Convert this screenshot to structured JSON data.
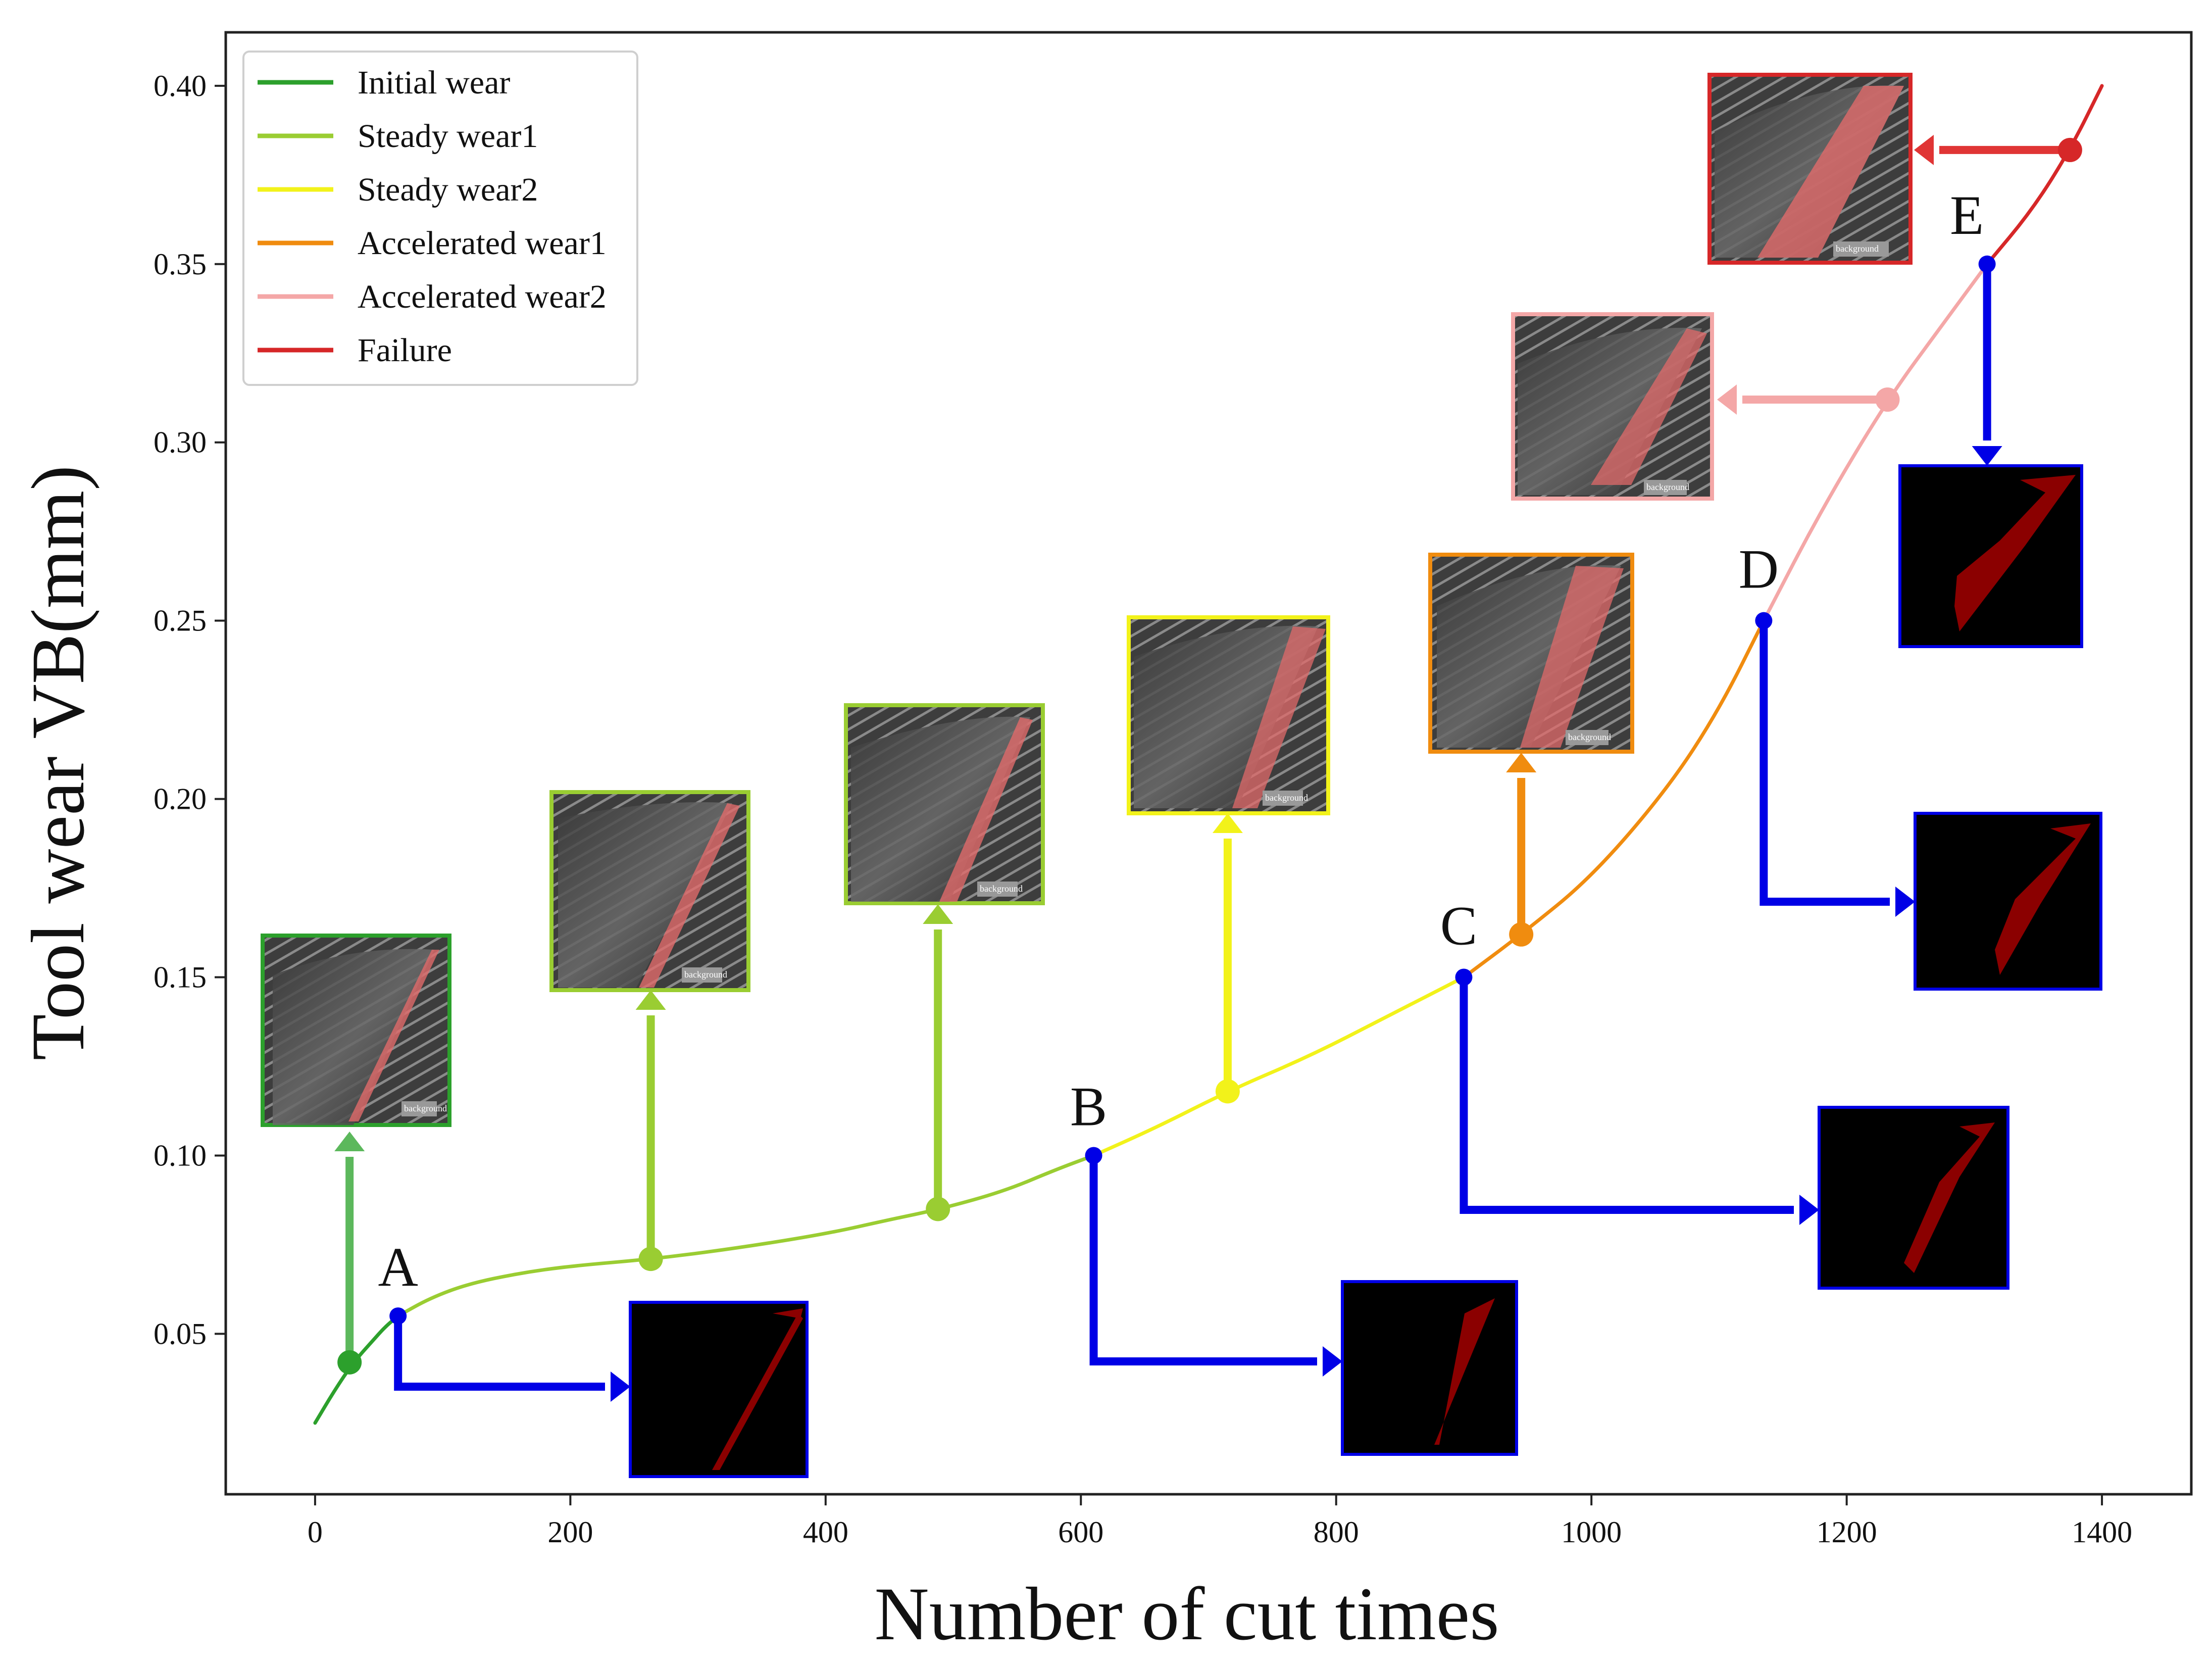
{
  "chart_data": {
    "type": "line",
    "title": "",
    "xlabel": "Number of cut times",
    "ylabel": "Tool  wear VB(mm)",
    "xlim": [
      -70,
      1470
    ],
    "ylim": [
      0.005,
      0.415
    ],
    "xticks": [
      0,
      200,
      400,
      600,
      800,
      1000,
      1200,
      1400
    ],
    "yticks": [
      0.05,
      0.1,
      0.15,
      0.2,
      0.25,
      0.3,
      0.35,
      0.4
    ],
    "ytick_labels": [
      "0.05",
      "0.10",
      "0.15",
      "0.20",
      "0.25",
      "0.30",
      "0.35",
      "0.40"
    ],
    "grid": false,
    "legend_position": "top-left",
    "series": [
      {
        "name": "Initial wear",
        "color": "#2ca02c",
        "x": [
          0,
          15,
          30,
          45,
          55,
          65
        ],
        "y": [
          0.025,
          0.034,
          0.042,
          0.048,
          0.052,
          0.055
        ]
      },
      {
        "name": "Steady wear1",
        "color": "#9acd32",
        "x": [
          65,
          90,
          120,
          160,
          200,
          265,
          330,
          400,
          450,
          490,
          540,
          580,
          610
        ],
        "y": [
          0.055,
          0.06,
          0.064,
          0.067,
          0.069,
          0.071,
          0.074,
          0.078,
          0.082,
          0.085,
          0.09,
          0.096,
          0.1
        ]
      },
      {
        "name": "Steady wear2",
        "color": "#f2f21a",
        "x": [
          610,
          660,
          715,
          780,
          840,
          900
        ],
        "y": [
          0.1,
          0.108,
          0.118,
          0.128,
          0.139,
          0.15
        ]
      },
      {
        "name": "Accelerated wear1",
        "color": "#f08c0f",
        "x": [
          900,
          945,
          1000,
          1060,
          1100,
          1135
        ],
        "y": [
          0.15,
          0.162,
          0.178,
          0.203,
          0.225,
          0.25
        ]
      },
      {
        "name": "Accelerated wear2",
        "color": "#f4a7a7",
        "x": [
          1135,
          1180,
          1232,
          1275,
          1310
        ],
        "y": [
          0.25,
          0.281,
          0.312,
          0.333,
          0.35
        ]
      },
      {
        "name": "Failure",
        "color": "#d62728",
        "x": [
          1310,
          1345,
          1375,
          1400
        ],
        "y": [
          0.35,
          0.365,
          0.382,
          0.4
        ]
      }
    ],
    "markers": [
      {
        "x": 27,
        "y": 0.042,
        "color": "#2ca02c"
      },
      {
        "x": 263,
        "y": 0.071,
        "color": "#9acd32"
      },
      {
        "x": 488,
        "y": 0.085,
        "color": "#9acd32"
      },
      {
        "x": 715,
        "y": 0.118,
        "color": "#f2f21a"
      },
      {
        "x": 945,
        "y": 0.162,
        "color": "#f08c0f"
      },
      {
        "x": 1232,
        "y": 0.312,
        "color": "#f4a7a7"
      },
      {
        "x": 1375,
        "y": 0.382,
        "color": "#d62728"
      }
    ],
    "annotations": [
      {
        "label": "A",
        "x": 65,
        "y": 0.055
      },
      {
        "label": "B",
        "x": 610,
        "y": 0.1
      },
      {
        "label": "C",
        "x": 900,
        "y": 0.15
      },
      {
        "label": "D",
        "x": 1135,
        "y": 0.25
      },
      {
        "label": "E",
        "x": 1310,
        "y": 0.35
      }
    ],
    "image_overlay_label": "background"
  },
  "colors": {
    "segmentation_arrow": "#0000e6",
    "axis": "#222222"
  }
}
